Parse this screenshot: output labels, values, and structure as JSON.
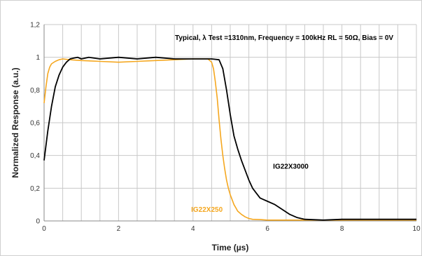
{
  "chart_data": {
    "type": "line",
    "title": "",
    "annotation": "Typical, λ Test =1310nm,  Frequency = 100kHz RL = 50Ω,  Bias = 0V",
    "xlabel": "Time (µs)",
    "ylabel": "Normalized Response (a.u.)",
    "xlim": [
      0,
      10
    ],
    "ylim": [
      0,
      1.2
    ],
    "x_ticks": [
      "0",
      "2",
      "4",
      "6",
      "8",
      "10"
    ],
    "y_ticks": [
      "0",
      "0,2",
      "0,4",
      "0,6",
      "0,8",
      "1",
      "1,2"
    ],
    "grid": {
      "x_step": 0.5,
      "y_step": 0.2
    },
    "legend": "none",
    "series": [
      {
        "name": "IG22X3000",
        "color": "#000000",
        "label_at": [
          6.15,
          0.32
        ],
        "x": [
          0,
          0.1,
          0.2,
          0.3,
          0.4,
          0.5,
          0.6,
          0.7,
          0.8,
          0.9,
          1.0,
          1.2,
          1.5,
          2.0,
          2.5,
          3.0,
          3.5,
          4.0,
          4.5,
          4.7,
          4.8,
          4.9,
          5.0,
          5.1,
          5.2,
          5.3,
          5.4,
          5.5,
          5.6,
          5.7,
          5.8,
          5.9,
          6.0,
          6.2,
          6.4,
          6.6,
          6.8,
          7.0,
          7.5,
          8.0,
          9.0,
          10.0
        ],
        "y": [
          0.37,
          0.55,
          0.7,
          0.82,
          0.89,
          0.94,
          0.97,
          0.99,
          0.995,
          1.0,
          0.99,
          1.0,
          0.99,
          1.0,
          0.99,
          1.0,
          0.99,
          0.99,
          0.99,
          0.985,
          0.93,
          0.8,
          0.65,
          0.52,
          0.44,
          0.37,
          0.31,
          0.25,
          0.2,
          0.17,
          0.14,
          0.13,
          0.12,
          0.1,
          0.07,
          0.04,
          0.02,
          0.01,
          0.005,
          0.01,
          0.01,
          0.01
        ]
      },
      {
        "name": "IG22X250",
        "color": "#f5a71f",
        "label_at": [
          3.95,
          0.055
        ],
        "x": [
          0,
          0.05,
          0.1,
          0.15,
          0.2,
          0.3,
          0.4,
          0.5,
          0.7,
          1.0,
          1.5,
          2.0,
          2.5,
          3.0,
          3.5,
          4.0,
          4.4,
          4.5,
          4.55,
          4.6,
          4.65,
          4.7,
          4.75,
          4.8,
          4.85,
          4.9,
          4.95,
          5.0,
          5.05,
          5.1,
          5.15,
          5.2,
          5.3,
          5.4,
          5.5,
          5.6,
          5.8,
          6.0,
          6.5,
          7.0,
          8.0,
          10.0
        ],
        "y": [
          0.72,
          0.82,
          0.9,
          0.94,
          0.96,
          0.975,
          0.985,
          0.99,
          0.985,
          0.98,
          0.975,
          0.97,
          0.975,
          0.98,
          0.985,
          0.99,
          0.99,
          0.97,
          0.93,
          0.85,
          0.75,
          0.62,
          0.5,
          0.4,
          0.32,
          0.25,
          0.2,
          0.16,
          0.13,
          0.1,
          0.08,
          0.06,
          0.04,
          0.025,
          0.015,
          0.01,
          0.008,
          0.005,
          0.005,
          0.005,
          0.005,
          0.005
        ]
      }
    ]
  }
}
